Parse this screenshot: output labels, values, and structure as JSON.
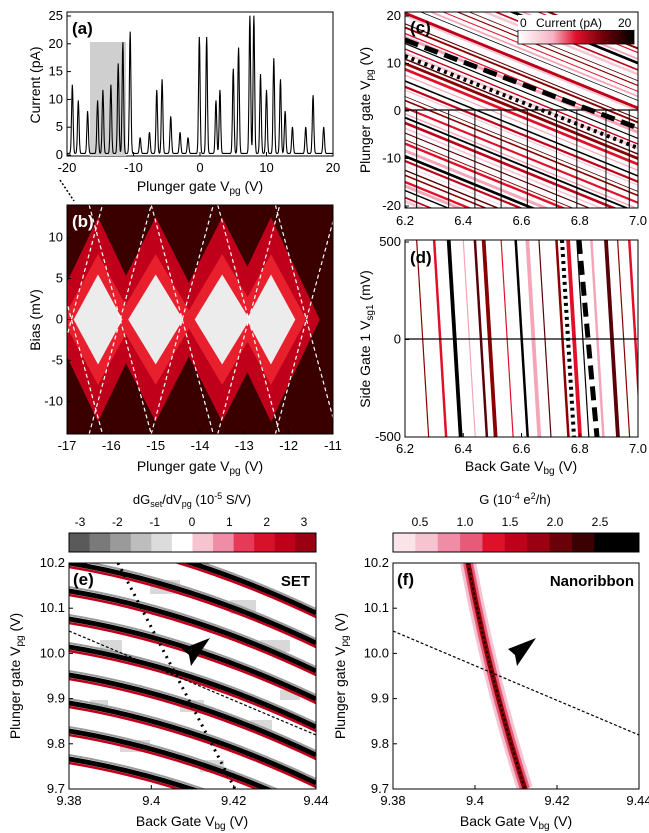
{
  "panels": {
    "a": {
      "label": "(a)",
      "ylabel": "Current (pA)",
      "xlabel": "Plunger gate V",
      "xlabel_sub": "pg",
      "xlabel_unit": " (V)",
      "xticks": [
        "-20",
        "-10",
        "0",
        "10",
        "20"
      ],
      "yticks": [
        "0",
        "5",
        "10",
        "15",
        "20",
        "25"
      ]
    },
    "b": {
      "label": "(b)",
      "ylabel": "Bias (mV)",
      "xlabel": "Plunger gate V",
      "xlabel_sub": "pg",
      "xlabel_unit": " (V)",
      "xticks": [
        "-17",
        "-16",
        "-15",
        "-14",
        "-13",
        "-12",
        "-11"
      ],
      "yticks": [
        "10",
        "5",
        "0",
        "-5",
        "-10"
      ]
    },
    "c": {
      "label": "(c)",
      "ylabel": "Plunger gate V",
      "ylabel_sub": "pg",
      "ylabel_unit": " (V)",
      "colorbar_label": "Current (pA)",
      "colorbar_min": "0",
      "colorbar_max": "20",
      "xticks": [
        "6.2",
        "6.4",
        "6.6",
        "6.8",
        "7.0"
      ],
      "yticks": [
        "20",
        "10",
        "0",
        "-10",
        "-20"
      ]
    },
    "d": {
      "label": "(d)",
      "ylabel": "Side Gate 1 V",
      "ylabel_sub": "sg1",
      "ylabel_unit": " (mV)",
      "xlabel": "Back Gate V",
      "xlabel_sub": "bg",
      "xlabel_unit": " (V)",
      "xticks": [
        "6.2",
        "6.4",
        "6.6",
        "6.8",
        "7.0"
      ],
      "yticks": [
        "500",
        "0",
        "-500"
      ]
    },
    "e": {
      "label": "(e)",
      "tag": "SET",
      "colorbar_label": "dG",
      "colorbar_label_sub": "set",
      "colorbar_label_mid": "/dV",
      "colorbar_label_sub2": "pg",
      "colorbar_label_unit": " (10",
      "colorbar_label_sup": "-5",
      "colorbar_label_end": " S/V)",
      "colorbar_ticks": [
        "-3",
        "-2",
        "-1",
        "0",
        "1",
        "2",
        "3"
      ],
      "ylabel": "Plunger gate V",
      "ylabel_sub": "pg",
      "ylabel_unit": " (V)",
      "xlabel": "Back Gate V",
      "xlabel_sub": "bg",
      "xlabel_unit": " (V)",
      "xticks": [
        "9.38",
        "9.4",
        "9.42",
        "9.44"
      ],
      "yticks": [
        "10.2",
        "10.1",
        "10.0",
        "9.9",
        "9.8",
        "9.7"
      ]
    },
    "f": {
      "label": "(f)",
      "tag": "Nanoribbon",
      "colorbar_label": "G (10",
      "colorbar_label_sup": "-4",
      "colorbar_label_unit": " e",
      "colorbar_label_sup2": "2",
      "colorbar_label_end": "/h)",
      "colorbar_ticks": [
        "0.5",
        "1.0",
        "1.5",
        "2.0",
        "2.5"
      ],
      "ylabel": "Plunger gate V",
      "ylabel_sub": "pg",
      "ylabel_unit": " (V)",
      "xlabel": "Back Gate V",
      "xlabel_sub": "bg",
      "xlabel_unit": " (V)",
      "xticks": [
        "9.38",
        "9.4",
        "9.42",
        "9.44"
      ],
      "yticks": [
        "10.2",
        "10.1",
        "10.0",
        "9.9",
        "9.8",
        "9.7"
      ]
    }
  },
  "colors": {
    "dark_red": "#8b0000",
    "red": "#e0102a",
    "pink": "#f4a6b8",
    "black": "#000000",
    "gray": "#d8d8d8"
  },
  "chart_data": [
    {
      "panel": "a",
      "type": "line",
      "xlabel": "Plunger gate Vpg (V)",
      "ylabel": "Current (pA)",
      "xlim": [
        -20,
        20
      ],
      "ylim": [
        0,
        27
      ],
      "peaks": [
        {
          "x": -19.2,
          "y": 13
        },
        {
          "x": -18.3,
          "y": 10
        },
        {
          "x": -16.9,
          "y": 8
        },
        {
          "x": -15.4,
          "y": 10
        },
        {
          "x": -14.6,
          "y": 12
        },
        {
          "x": -13.4,
          "y": 13
        },
        {
          "x": -12.3,
          "y": 17
        },
        {
          "x": -11.6,
          "y": 21
        },
        {
          "x": -10.5,
          "y": 23
        },
        {
          "x": -9.0,
          "y": 3
        },
        {
          "x": -7.6,
          "y": 4
        },
        {
          "x": -6.5,
          "y": 12
        },
        {
          "x": -5.7,
          "y": 14
        },
        {
          "x": -4.4,
          "y": 7
        },
        {
          "x": -3.0,
          "y": 4
        },
        {
          "x": -1.8,
          "y": 3
        },
        {
          "x": -0.1,
          "y": 22
        },
        {
          "x": 1.0,
          "y": 22
        },
        {
          "x": 2.4,
          "y": 10
        },
        {
          "x": 3.0,
          "y": 12
        },
        {
          "x": 5.0,
          "y": 16
        },
        {
          "x": 5.8,
          "y": 20
        },
        {
          "x": 7.5,
          "y": 26
        },
        {
          "x": 8.1,
          "y": 26
        },
        {
          "x": 9.1,
          "y": 15
        },
        {
          "x": 10.0,
          "y": 12
        },
        {
          "x": 11.1,
          "y": 18
        },
        {
          "x": 12.1,
          "y": 14
        },
        {
          "x": 12.8,
          "y": 8
        },
        {
          "x": 13.9,
          "y": 5
        },
        {
          "x": 15.9,
          "y": 5
        },
        {
          "x": 17.0,
          "y": 11
        },
        {
          "x": 18.6,
          "y": 5
        }
      ]
    },
    {
      "panel": "b",
      "type": "heatmap",
      "xlabel": "Plunger gate Vpg (V)",
      "ylabel": "Bias (mV)",
      "xlim": [
        -17,
        -11
      ],
      "ylim": [
        -14,
        14
      ],
      "diamond_centers": [
        -16.3,
        -15.0,
        -13.5,
        -12.4
      ],
      "diamond_half_width": [
        0.55,
        0.62,
        0.62,
        0.55
      ],
      "diamond_half_height": 5.5
    },
    {
      "panel": "c",
      "type": "heatmap",
      "xlabel": "Back Gate Vbg (V)",
      "ylabel": "Plunger gate Vpg (V)",
      "xlim": [
        6.2,
        7.0
      ],
      "ylim": [
        -20,
        20
      ],
      "colorbar_range": [
        0,
        20
      ]
    },
    {
      "panel": "d",
      "type": "heatmap",
      "xlabel": "Back Gate Vbg (V)",
      "ylabel": "Side Gate 1 Vsg1 (mV)",
      "xlim": [
        6.2,
        7.0
      ],
      "ylim": [
        -500,
        500
      ],
      "line_positions": [
        6.24,
        6.3,
        6.35,
        6.4,
        6.44,
        6.47,
        6.53,
        6.58,
        6.62,
        6.66,
        6.72,
        6.76,
        6.79,
        6.84,
        6.89,
        6.93,
        6.97
      ]
    },
    {
      "panel": "e",
      "type": "heatmap",
      "xlabel": "Back Gate Vbg (V)",
      "ylabel": "Plunger gate Vpg (V)",
      "xlim": [
        9.38,
        9.44
      ],
      "ylim": [
        9.7,
        10.2
      ],
      "colorbar_range": [
        -3,
        3
      ]
    },
    {
      "panel": "f",
      "type": "heatmap",
      "xlabel": "Back Gate Vbg (V)",
      "ylabel": "Plunger gate Vpg (V)",
      "xlim": [
        9.38,
        9.44
      ],
      "ylim": [
        9.7,
        10.2
      ],
      "colorbar_range": [
        0.3,
        3.0
      ]
    }
  ]
}
